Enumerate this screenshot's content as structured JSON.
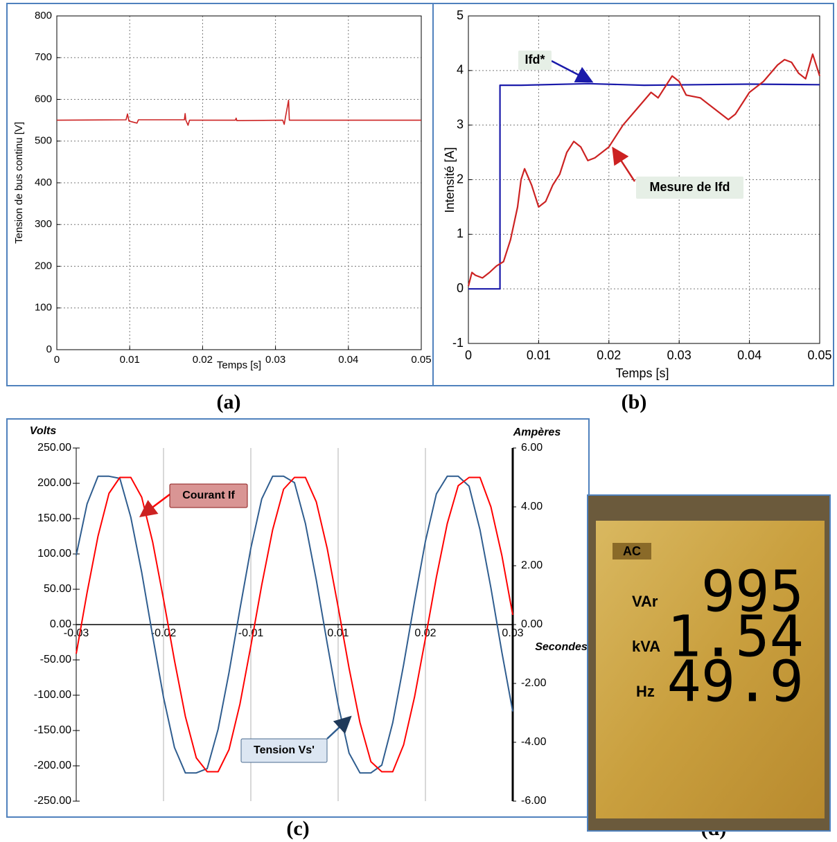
{
  "chart_data": [
    {
      "type": "line",
      "xlabel": "Temps [s]",
      "ylabel": "Tension de bus continu [V]",
      "xlim": [
        0,
        0.05
      ],
      "ylim": [
        0,
        800
      ],
      "xticks": [
        0,
        0.01,
        0.02,
        0.03,
        0.04,
        0.05
      ],
      "yticks": [
        0,
        100,
        200,
        300,
        400,
        500,
        600,
        700,
        800
      ],
      "grid": true,
      "series": [
        {
          "color": "#cc2222",
          "x": [
            0,
            0.0095,
            0.0097,
            0.0099,
            0.011,
            0.0112,
            0.0175,
            0.0176,
            0.0177,
            0.018,
            0.0182,
            0.0245,
            0.0246,
            0.0247,
            0.031,
            0.0312,
            0.0314,
            0.0318,
            0.0319,
            0.0325,
            0.05
          ],
          "values": [
            550,
            551,
            565,
            548,
            543,
            551,
            551,
            566,
            550,
            538,
            550,
            550,
            555,
            549,
            550,
            540,
            560,
            598,
            550,
            550,
            550
          ]
        }
      ]
    },
    {
      "type": "line",
      "xlabel": "Temps [s]",
      "ylabel": "Intensité [A]",
      "xlim": [
        0,
        0.05
      ],
      "ylim": [
        -1,
        5
      ],
      "xticks": [
        0,
        0.01,
        0.02,
        0.03,
        0.04,
        0.05
      ],
      "yticks": [
        -1,
        0,
        1,
        2,
        3,
        4,
        5
      ],
      "grid": true,
      "series": [
        {
          "name": "Ifd*",
          "color": "#1a1aaa",
          "x": [
            0,
            0.0045,
            0.0045,
            0.0075,
            0.017,
            0.025,
            0.04,
            0.05
          ],
          "values": [
            0,
            0,
            3.73,
            3.73,
            3.76,
            3.73,
            3.75,
            3.74
          ]
        },
        {
          "name": "Mesure de Ifd",
          "color": "#cc2222",
          "x": [
            0,
            0.0005,
            0.001,
            0.002,
            0.003,
            0.004,
            0.005,
            0.006,
            0.007,
            0.0075,
            0.008,
            0.009,
            0.01,
            0.011,
            0.012,
            0.013,
            0.014,
            0.015,
            0.016,
            0.017,
            0.018,
            0.019,
            0.02,
            0.022,
            0.024,
            0.026,
            0.027,
            0.028,
            0.029,
            0.03,
            0.031,
            0.033,
            0.035,
            0.037,
            0.038,
            0.04,
            0.042,
            0.044,
            0.045,
            0.046,
            0.047,
            0.048,
            0.049,
            0.05
          ],
          "values": [
            0.05,
            0.3,
            0.25,
            0.2,
            0.3,
            0.42,
            0.5,
            0.9,
            1.5,
            2.0,
            2.2,
            1.9,
            1.5,
            1.6,
            1.9,
            2.1,
            2.5,
            2.7,
            2.6,
            2.35,
            2.4,
            2.5,
            2.6,
            3.0,
            3.3,
            3.6,
            3.5,
            3.7,
            3.9,
            3.8,
            3.55,
            3.5,
            3.3,
            3.1,
            3.2,
            3.6,
            3.8,
            4.1,
            4.2,
            4.15,
            3.95,
            3.85,
            4.3,
            3.9
          ]
        }
      ]
    },
    {
      "type": "line",
      "xlabel": "Secondes",
      "ylabel": "Volts",
      "y2label": "Ampères",
      "xlim": [
        -0.03,
        0.03
      ],
      "ylim": [
        -250,
        250
      ],
      "y2lim": [
        -6,
        6
      ],
      "grid": "x",
      "xticks": [
        -0.03,
        {
          "value": -0.018,
          "label": "-0.02"
        },
        {
          "value": -0.006,
          "label": "-0.01"
        },
        {
          "value": 0.006,
          "label": "0.01"
        },
        {
          "value": 0.018,
          "label": "0.02"
        },
        0.03
      ],
      "yticks": [
        {
          "value": 250,
          "label": "250.00"
        },
        {
          "value": 200,
          "label": "200.00"
        },
        {
          "value": 150,
          "label": "150.00"
        },
        {
          "value": 100,
          "label": "100.00"
        },
        {
          "value": 50,
          "label": "50.00"
        },
        {
          "value": 0,
          "label": "0.00"
        },
        {
          "value": -50,
          "label": "-50.00"
        },
        {
          "value": -100,
          "label": "-100.00"
        },
        {
          "value": -150,
          "label": "-150.00"
        },
        {
          "value": -200,
          "label": "-200.00"
        },
        {
          "value": -250,
          "label": "-250.00"
        }
      ],
      "y2ticks": [
        {
          "value": 6,
          "label": "6.00"
        },
        {
          "value": 4,
          "label": "4.00"
        },
        {
          "value": 2,
          "label": "2.00"
        },
        {
          "value": 0,
          "label": "0.00"
        },
        {
          "value": -2,
          "label": "-2.00"
        },
        {
          "value": -4,
          "label": "-4.00"
        },
        {
          "value": -6,
          "label": "-6.00"
        }
      ],
      "series": [
        {
          "name": "Tension Vs'",
          "color": "#2f5d8f",
          "x": [
            -0.03,
            -0.0285,
            -0.027,
            -0.0255,
            -0.024,
            -0.0225,
            -0.021,
            -0.0195,
            -0.018,
            -0.0165,
            -0.015,
            -0.0135,
            -0.012,
            -0.0105,
            -0.009,
            -0.0075,
            -0.006,
            -0.0045,
            -0.003,
            -0.0015,
            0,
            0.0015,
            0.003,
            0.0045,
            0.006,
            0.0075,
            0.009,
            0.0105,
            0.012,
            0.0135,
            0.015,
            0.0165,
            0.018,
            0.0195,
            0.021,
            0.0225,
            0.024,
            0.0255,
            0.027,
            0.0285,
            0.03
          ],
          "values": [
            98,
            171,
            210,
            210,
            207,
            152,
            74,
            -16,
            -103,
            -174,
            -210,
            -210,
            -204,
            -148,
            -68,
            22,
            108,
            178,
            210,
            210,
            201,
            143,
            63,
            -27,
            -113,
            -182,
            -210,
            -210,
            -199,
            -139,
            -57,
            33,
            118,
            185,
            210,
            210,
            196,
            134,
            52,
            -39,
            -123
          ]
        },
        {
          "name": "Courant If",
          "color": "#ff0000",
          "axis": "y2",
          "x": [
            -0.03,
            -0.0285,
            -0.027,
            -0.0255,
            -0.024,
            -0.0225,
            -0.021,
            -0.0195,
            -0.018,
            -0.0165,
            -0.015,
            -0.0135,
            -0.012,
            -0.0105,
            -0.009,
            -0.0075,
            -0.006,
            -0.0045,
            -0.003,
            -0.0015,
            0,
            0.0015,
            0.003,
            0.0045,
            0.006,
            0.0075,
            0.009,
            0.0105,
            0.012,
            0.0135,
            0.015,
            0.0165,
            0.018,
            0.0195,
            0.021,
            0.0225,
            0.024,
            0.0255,
            0.027,
            0.0285,
            0.03
          ],
          "values": [
            -0.99,
            1.09,
            3.01,
            4.46,
            5.0,
            5.0,
            4.33,
            2.81,
            0.86,
            -1.22,
            -3.12,
            -4.53,
            -5.0,
            -5.0,
            -4.25,
            -2.7,
            -0.73,
            1.35,
            3.22,
            4.6,
            5.0,
            5.0,
            4.17,
            2.58,
            0.6,
            -1.48,
            -3.33,
            -4.66,
            -5.0,
            -5.0,
            -4.09,
            -2.46,
            -0.47,
            1.61,
            3.43,
            4.72,
            5.0,
            5.0,
            4.0,
            2.35,
            0.33
          ]
        }
      ]
    }
  ],
  "panel_labels": [
    "(a)",
    "(b)",
    "(c)",
    "(d)"
  ],
  "meter": {
    "mode": "AC",
    "rows": [
      {
        "unit": "VAr",
        "reading": "995"
      },
      {
        "unit": "kVA",
        "reading": "1.54"
      },
      {
        "unit": "Hz",
        "reading": "49.9"
      }
    ]
  }
}
